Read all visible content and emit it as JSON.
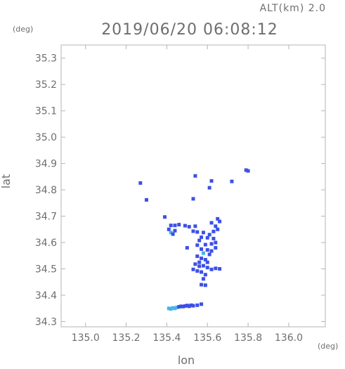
{
  "chart_data": {
    "type": "scatter",
    "title": "2019/06/20 06:08:12",
    "altitude_label": "ALT(km) 2.0",
    "xlabel": "lon",
    "ylabel": "lat",
    "xunit": "(deg)",
    "yunit": "(deg)",
    "xlim": [
      134.88,
      136.18
    ],
    "ylim": [
      34.28,
      35.35
    ],
    "xticks": [
      "135.0",
      "135.2",
      "135.4",
      "135.6",
      "135.8",
      "136.0"
    ],
    "yticks": [
      "34.3",
      "34.4",
      "34.5",
      "34.6",
      "34.7",
      "34.8",
      "34.9",
      "35.0",
      "35.1",
      "35.2",
      "35.3"
    ],
    "grid": false,
    "colors": {
      "echo_low": "#46b4e6",
      "echo_mid": "#3c50e6",
      "frame": "#b4b4b4",
      "text": "#6e6e6e"
    },
    "points": [
      {
        "x": 135.79,
        "y": 34.875,
        "level": "mid"
      },
      {
        "x": 135.8,
        "y": 34.872,
        "level": "mid"
      },
      {
        "x": 135.27,
        "y": 34.826,
        "level": "mid"
      },
      {
        "x": 135.54,
        "y": 34.853,
        "level": "mid"
      },
      {
        "x": 135.62,
        "y": 34.834,
        "level": "mid"
      },
      {
        "x": 135.72,
        "y": 34.832,
        "level": "mid"
      },
      {
        "x": 135.61,
        "y": 34.808,
        "level": "mid"
      },
      {
        "x": 135.3,
        "y": 34.762,
        "level": "mid"
      },
      {
        "x": 135.53,
        "y": 34.766,
        "level": "mid"
      },
      {
        "x": 135.39,
        "y": 34.697,
        "level": "mid"
      },
      {
        "x": 135.65,
        "y": 34.69,
        "level": "mid"
      },
      {
        "x": 135.66,
        "y": 34.68,
        "level": "mid"
      },
      {
        "x": 135.62,
        "y": 34.675,
        "level": "mid"
      },
      {
        "x": 135.42,
        "y": 34.665,
        "level": "mid"
      },
      {
        "x": 135.44,
        "y": 34.665,
        "level": "mid"
      },
      {
        "x": 135.46,
        "y": 34.668,
        "level": "mid"
      },
      {
        "x": 135.49,
        "y": 34.664,
        "level": "mid"
      },
      {
        "x": 135.51,
        "y": 34.66,
        "level": "mid"
      },
      {
        "x": 135.54,
        "y": 34.662,
        "level": "mid"
      },
      {
        "x": 135.64,
        "y": 34.662,
        "level": "mid"
      },
      {
        "x": 135.65,
        "y": 34.65,
        "level": "mid"
      },
      {
        "x": 135.63,
        "y": 34.642,
        "level": "mid"
      },
      {
        "x": 135.41,
        "y": 34.65,
        "level": "mid"
      },
      {
        "x": 135.42,
        "y": 34.638,
        "level": "low"
      },
      {
        "x": 135.44,
        "y": 34.645,
        "level": "mid"
      },
      {
        "x": 135.43,
        "y": 34.632,
        "level": "mid"
      },
      {
        "x": 135.53,
        "y": 34.643,
        "level": "mid"
      },
      {
        "x": 135.55,
        "y": 34.64,
        "level": "mid"
      },
      {
        "x": 135.58,
        "y": 34.638,
        "level": "mid"
      },
      {
        "x": 135.61,
        "y": 34.63,
        "level": "mid"
      },
      {
        "x": 135.6,
        "y": 34.618,
        "level": "mid"
      },
      {
        "x": 135.57,
        "y": 34.62,
        "level": "mid"
      },
      {
        "x": 135.56,
        "y": 34.608,
        "level": "mid"
      },
      {
        "x": 135.63,
        "y": 34.615,
        "level": "mid"
      },
      {
        "x": 135.64,
        "y": 34.6,
        "level": "mid"
      },
      {
        "x": 135.62,
        "y": 34.595,
        "level": "mid"
      },
      {
        "x": 135.59,
        "y": 34.592,
        "level": "mid"
      },
      {
        "x": 135.5,
        "y": 34.58,
        "level": "mid"
      },
      {
        "x": 135.55,
        "y": 34.59,
        "level": "mid"
      },
      {
        "x": 135.57,
        "y": 34.575,
        "level": "mid"
      },
      {
        "x": 135.6,
        "y": 34.572,
        "level": "mid"
      },
      {
        "x": 135.62,
        "y": 34.568,
        "level": "mid"
      },
      {
        "x": 135.64,
        "y": 34.58,
        "level": "mid"
      },
      {
        "x": 135.58,
        "y": 34.56,
        "level": "low"
      },
      {
        "x": 135.61,
        "y": 34.555,
        "level": "mid"
      },
      {
        "x": 135.55,
        "y": 34.548,
        "level": "mid"
      },
      {
        "x": 135.57,
        "y": 34.54,
        "level": "mid"
      },
      {
        "x": 135.59,
        "y": 34.535,
        "level": "mid"
      },
      {
        "x": 135.6,
        "y": 34.525,
        "level": "mid"
      },
      {
        "x": 135.56,
        "y": 34.525,
        "level": "mid"
      },
      {
        "x": 135.54,
        "y": 34.518,
        "level": "mid"
      },
      {
        "x": 135.56,
        "y": 34.51,
        "level": "mid"
      },
      {
        "x": 135.58,
        "y": 34.512,
        "level": "mid"
      },
      {
        "x": 135.6,
        "y": 34.505,
        "level": "mid"
      },
      {
        "x": 135.62,
        "y": 34.498,
        "level": "mid"
      },
      {
        "x": 135.64,
        "y": 34.502,
        "level": "mid"
      },
      {
        "x": 135.66,
        "y": 34.5,
        "level": "mid"
      },
      {
        "x": 135.53,
        "y": 34.498,
        "level": "mid"
      },
      {
        "x": 135.55,
        "y": 34.492,
        "level": "mid"
      },
      {
        "x": 135.57,
        "y": 34.488,
        "level": "mid"
      },
      {
        "x": 135.59,
        "y": 34.478,
        "level": "mid"
      },
      {
        "x": 135.58,
        "y": 34.462,
        "level": "mid"
      },
      {
        "x": 135.57,
        "y": 34.44,
        "level": "mid"
      },
      {
        "x": 135.59,
        "y": 34.438,
        "level": "mid"
      },
      {
        "x": 135.41,
        "y": 34.35,
        "level": "low"
      },
      {
        "x": 135.42,
        "y": 34.348,
        "level": "low"
      },
      {
        "x": 135.43,
        "y": 34.352,
        "level": "low"
      },
      {
        "x": 135.44,
        "y": 34.35,
        "level": "low"
      },
      {
        "x": 135.45,
        "y": 34.354,
        "level": "low"
      },
      {
        "x": 135.46,
        "y": 34.356,
        "level": "mid"
      },
      {
        "x": 135.47,
        "y": 34.358,
        "level": "mid"
      },
      {
        "x": 135.48,
        "y": 34.357,
        "level": "mid"
      },
      {
        "x": 135.49,
        "y": 34.359,
        "level": "mid"
      },
      {
        "x": 135.5,
        "y": 34.361,
        "level": "mid"
      },
      {
        "x": 135.51,
        "y": 34.358,
        "level": "mid"
      },
      {
        "x": 135.52,
        "y": 34.362,
        "level": "mid"
      },
      {
        "x": 135.53,
        "y": 34.36,
        "level": "mid"
      },
      {
        "x": 135.55,
        "y": 34.362,
        "level": "mid"
      },
      {
        "x": 135.57,
        "y": 34.366,
        "level": "mid"
      }
    ]
  }
}
